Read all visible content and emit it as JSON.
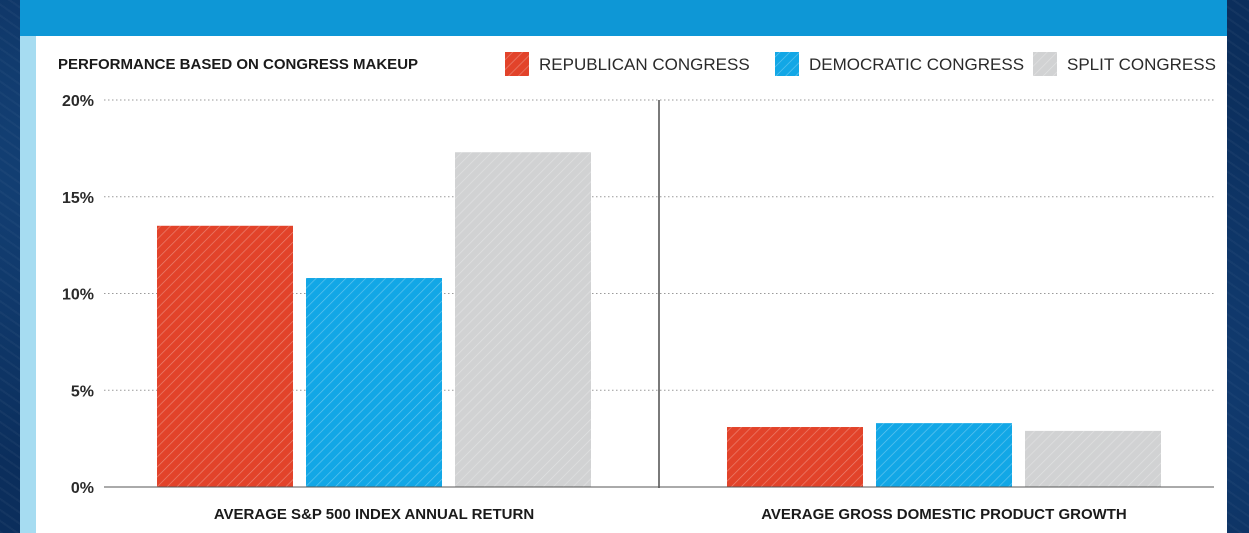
{
  "chart_data": {
    "type": "bar",
    "title": "PERFORMANCE BASED ON CONGRESS MAKEUP",
    "categories": [
      "AVERAGE S&P 500 INDEX ANNUAL RETURN",
      "AVERAGE GROSS DOMESTIC PRODUCT GROWTH"
    ],
    "series": [
      {
        "name": "REPUBLICAN CONGRESS",
        "values": [
          13.5,
          3.1
        ],
        "color": "#e2432a"
      },
      {
        "name": "DEMOCRATIC CONGRESS",
        "values": [
          10.8,
          3.3
        ],
        "color": "#12a7e6"
      },
      {
        "name": "SPLIT CONGRESS",
        "values": [
          17.3,
          2.9
        ],
        "color": "#d1d2d3"
      }
    ],
    "ylim": [
      0,
      20
    ],
    "yticks": [
      0,
      5,
      10,
      15,
      20
    ],
    "ytick_labels": [
      "0%",
      "5%",
      "10%",
      "15%",
      "20%"
    ],
    "xlabel": "",
    "ylabel": "",
    "grid": true,
    "legend_position": "top-right"
  }
}
